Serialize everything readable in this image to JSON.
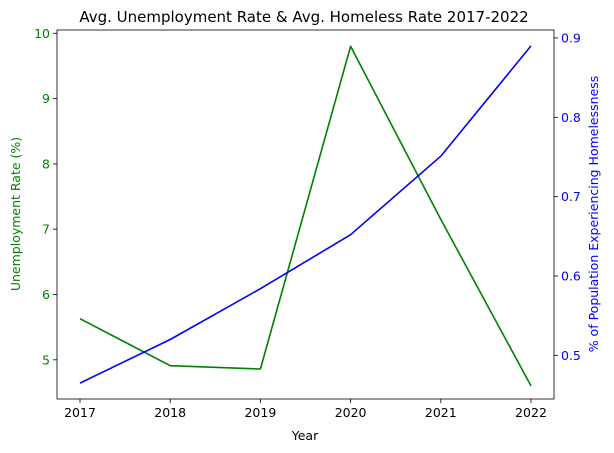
{
  "chart_data": {
    "type": "line",
    "title": "Avg. Unemployment Rate & Avg. Homeless Rate 2017-2022",
    "xlabel": "Year",
    "x": [
      "2017",
      "2018",
      "2019",
      "2020",
      "2021",
      "2022"
    ],
    "ylabel_left": "Unemployment Rate (%)",
    "ylabel_right": "% of Population Experiencing Homelessness",
    "ylim_left": [
      4.4,
      10.05
    ],
    "ylim_right": [
      0.445,
      0.91
    ],
    "yticks_left": [
      "5",
      "6",
      "7",
      "8",
      "9",
      "10"
    ],
    "yticks_right": [
      "0.5",
      "0.6",
      "0.7",
      "0.8",
      "0.9"
    ],
    "grid": false,
    "series": [
      {
        "axis": "left",
        "color": "#008000",
        "values": [
          5.63,
          4.91,
          4.86,
          9.8,
          7.15,
          4.6
        ]
      },
      {
        "axis": "right",
        "color": "#0000ff",
        "values": [
          0.465,
          0.52,
          0.584,
          0.652,
          0.751,
          0.89
        ]
      }
    ]
  }
}
